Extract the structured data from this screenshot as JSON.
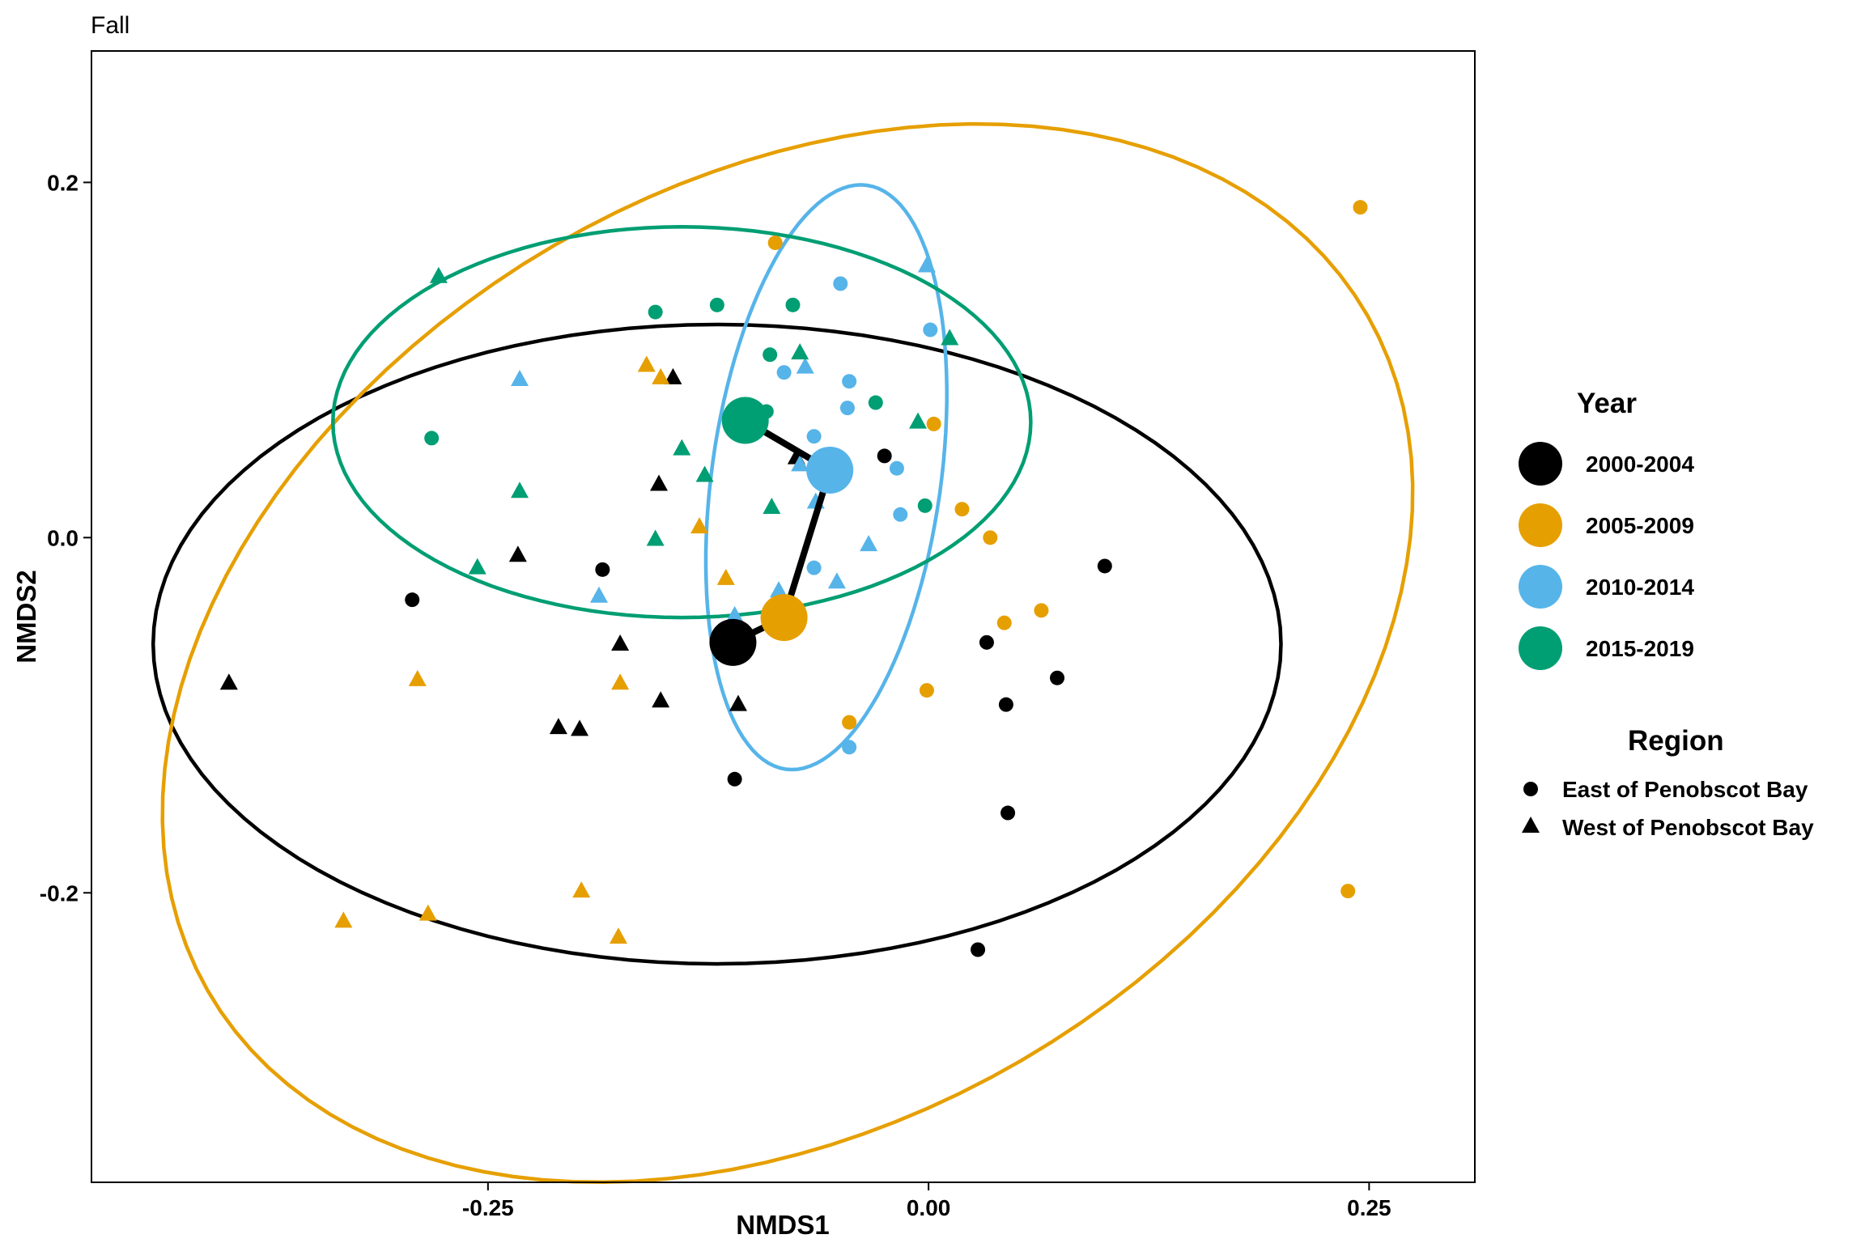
{
  "chart_data": {
    "type": "scatter",
    "title": "Fall",
    "xlabel": "NMDS1",
    "ylabel": "NMDS2",
    "xlim": [
      -0.475,
      0.31
    ],
    "ylim": [
      -0.363,
      0.274
    ],
    "x_ticks": [
      -0.25,
      0.0,
      0.25
    ],
    "x_tick_labels": [
      "-0.25",
      "0.00",
      "0.25"
    ],
    "y_ticks": [
      -0.2,
      0.0,
      0.2
    ],
    "y_tick_labels": [
      "-0.2",
      "0.0",
      "0.2"
    ],
    "grid": false,
    "legend_position": "right",
    "legends": {
      "year": {
        "title": "Year",
        "entries": [
          {
            "label": "2000-2004",
            "color": "#000000"
          },
          {
            "label": "2005-2009",
            "color": "#E69F00"
          },
          {
            "label": "2010-2014",
            "color": "#56B4E9"
          },
          {
            "label": "2015-2019",
            "color": "#009E73"
          }
        ]
      },
      "region": {
        "title": "Region",
        "entries": [
          {
            "label": "East of Penobscot Bay",
            "shape": "circle"
          },
          {
            "label": "West of Penobscot Bay",
            "shape": "triangle"
          }
        ]
      }
    },
    "series": [
      {
        "name": "2000-2004",
        "color": "#000000",
        "points": [
          {
            "x": -0.293,
            "y": -0.035,
            "shape": "circle"
          },
          {
            "x": -0.185,
            "y": -0.018,
            "shape": "circle"
          },
          {
            "x": -0.11,
            "y": -0.136,
            "shape": "circle"
          },
          {
            "x": 0.033,
            "y": -0.059,
            "shape": "circle"
          },
          {
            "x": 0.073,
            "y": -0.079,
            "shape": "circle"
          },
          {
            "x": 0.1,
            "y": -0.016,
            "shape": "circle"
          },
          {
            "x": 0.044,
            "y": -0.094,
            "shape": "circle"
          },
          {
            "x": 0.045,
            "y": -0.155,
            "shape": "circle"
          },
          {
            "x": 0.028,
            "y": -0.232,
            "shape": "circle"
          },
          {
            "x": -0.025,
            "y": 0.046,
            "shape": "circle"
          },
          {
            "x": -0.397,
            "y": -0.082,
            "shape": "triangle"
          },
          {
            "x": -0.233,
            "y": -0.01,
            "shape": "triangle"
          },
          {
            "x": -0.21,
            "y": -0.107,
            "shape": "triangle"
          },
          {
            "x": -0.198,
            "y": -0.108,
            "shape": "triangle"
          },
          {
            "x": -0.175,
            "y": -0.06,
            "shape": "triangle"
          },
          {
            "x": -0.152,
            "y": -0.092,
            "shape": "triangle"
          },
          {
            "x": -0.153,
            "y": 0.03,
            "shape": "triangle"
          },
          {
            "x": -0.145,
            "y": 0.09,
            "shape": "triangle"
          },
          {
            "x": -0.108,
            "y": -0.094,
            "shape": "triangle"
          },
          {
            "x": -0.075,
            "y": 0.045,
            "shape": "triangle"
          }
        ]
      },
      {
        "name": "2005-2009",
        "color": "#E69F00",
        "points": [
          {
            "x": -0.087,
            "y": 0.166,
            "shape": "circle"
          },
          {
            "x": 0.003,
            "y": 0.064,
            "shape": "circle"
          },
          {
            "x": 0.019,
            "y": 0.016,
            "shape": "circle"
          },
          {
            "x": 0.035,
            "y": 0.0,
            "shape": "circle"
          },
          {
            "x": 0.043,
            "y": -0.048,
            "shape": "circle"
          },
          {
            "x": 0.064,
            "y": -0.041,
            "shape": "circle"
          },
          {
            "x": -0.001,
            "y": -0.086,
            "shape": "circle"
          },
          {
            "x": -0.045,
            "y": -0.104,
            "shape": "circle"
          },
          {
            "x": 0.245,
            "y": 0.186,
            "shape": "circle"
          },
          {
            "x": 0.238,
            "y": -0.199,
            "shape": "circle"
          },
          {
            "x": -0.16,
            "y": 0.097,
            "shape": "triangle"
          },
          {
            "x": -0.152,
            "y": 0.09,
            "shape": "triangle"
          },
          {
            "x": -0.13,
            "y": 0.006,
            "shape": "triangle"
          },
          {
            "x": -0.115,
            "y": -0.023,
            "shape": "triangle"
          },
          {
            "x": -0.29,
            "y": -0.08,
            "shape": "triangle"
          },
          {
            "x": -0.175,
            "y": -0.082,
            "shape": "triangle"
          },
          {
            "x": -0.197,
            "y": -0.199,
            "shape": "triangle"
          },
          {
            "x": -0.176,
            "y": -0.225,
            "shape": "triangle"
          },
          {
            "x": -0.284,
            "y": -0.212,
            "shape": "triangle"
          },
          {
            "x": -0.332,
            "y": -0.216,
            "shape": "triangle"
          }
        ]
      },
      {
        "name": "2010-2014",
        "color": "#56B4E9",
        "points": [
          {
            "x": -0.05,
            "y": 0.143,
            "shape": "circle"
          },
          {
            "x": 0.001,
            "y": 0.117,
            "shape": "circle"
          },
          {
            "x": -0.082,
            "y": 0.093,
            "shape": "circle"
          },
          {
            "x": -0.045,
            "y": 0.088,
            "shape": "circle"
          },
          {
            "x": -0.046,
            "y": 0.073,
            "shape": "circle"
          },
          {
            "x": -0.065,
            "y": 0.057,
            "shape": "circle"
          },
          {
            "x": -0.018,
            "y": 0.039,
            "shape": "circle"
          },
          {
            "x": -0.016,
            "y": 0.013,
            "shape": "circle"
          },
          {
            "x": -0.065,
            "y": -0.017,
            "shape": "circle"
          },
          {
            "x": -0.045,
            "y": -0.118,
            "shape": "circle"
          },
          {
            "x": -0.001,
            "y": 0.153,
            "shape": "triangle"
          },
          {
            "x": -0.07,
            "y": 0.096,
            "shape": "triangle"
          },
          {
            "x": -0.232,
            "y": 0.089,
            "shape": "triangle"
          },
          {
            "x": -0.073,
            "y": 0.041,
            "shape": "triangle"
          },
          {
            "x": -0.064,
            "y": 0.02,
            "shape": "triangle"
          },
          {
            "x": -0.034,
            "y": -0.004,
            "shape": "triangle"
          },
          {
            "x": -0.052,
            "y": -0.025,
            "shape": "triangle"
          },
          {
            "x": -0.187,
            "y": -0.033,
            "shape": "triangle"
          },
          {
            "x": -0.085,
            "y": -0.03,
            "shape": "triangle"
          },
          {
            "x": -0.11,
            "y": -0.044,
            "shape": "triangle"
          }
        ]
      },
      {
        "name": "2015-2019",
        "color": "#009E73",
        "points": [
          {
            "x": -0.155,
            "y": 0.127,
            "shape": "circle"
          },
          {
            "x": -0.12,
            "y": 0.131,
            "shape": "circle"
          },
          {
            "x": -0.077,
            "y": 0.131,
            "shape": "circle"
          },
          {
            "x": -0.09,
            "y": 0.103,
            "shape": "circle"
          },
          {
            "x": -0.03,
            "y": 0.076,
            "shape": "circle"
          },
          {
            "x": -0.092,
            "y": 0.071,
            "shape": "circle"
          },
          {
            "x": -0.282,
            "y": 0.056,
            "shape": "circle"
          },
          {
            "x": -0.002,
            "y": 0.018,
            "shape": "circle"
          },
          {
            "x": -0.278,
            "y": 0.147,
            "shape": "triangle"
          },
          {
            "x": -0.073,
            "y": 0.104,
            "shape": "triangle"
          },
          {
            "x": 0.012,
            "y": 0.112,
            "shape": "triangle"
          },
          {
            "x": -0.006,
            "y": 0.065,
            "shape": "triangle"
          },
          {
            "x": -0.14,
            "y": 0.05,
            "shape": "triangle"
          },
          {
            "x": -0.127,
            "y": 0.035,
            "shape": "triangle"
          },
          {
            "x": -0.232,
            "y": 0.026,
            "shape": "triangle"
          },
          {
            "x": -0.089,
            "y": 0.017,
            "shape": "triangle"
          },
          {
            "x": -0.155,
            "y": -0.001,
            "shape": "triangle"
          },
          {
            "x": -0.256,
            "y": -0.017,
            "shape": "triangle"
          }
        ]
      }
    ],
    "centroids": [
      {
        "name": "2000-2004",
        "x": -0.111,
        "y": -0.059,
        "color": "#000000"
      },
      {
        "name": "2005-2009",
        "x": -0.082,
        "y": -0.045,
        "color": "#E69F00"
      },
      {
        "name": "2010-2014",
        "x": -0.056,
        "y": 0.038,
        "color": "#56B4E9"
      },
      {
        "name": "2015-2019",
        "x": -0.104,
        "y": 0.066,
        "color": "#009E73"
      }
    ],
    "centroid_path": [
      {
        "x": -0.111,
        "y": -0.059
      },
      {
        "x": -0.082,
        "y": -0.045
      },
      {
        "x": -0.056,
        "y": 0.038
      },
      {
        "x": -0.104,
        "y": 0.066
      }
    ],
    "ellipses": [
      {
        "name": "2000-2004",
        "color": "#000000",
        "cx": -0.12,
        "cy": -0.06,
        "rx": 0.32,
        "ry": 0.18,
        "angle": 0
      },
      {
        "name": "2005-2009",
        "color": "#E69F00",
        "cx": -0.08,
        "cy": -0.065,
        "rx": 0.38,
        "ry": 0.265,
        "angle": 30
      },
      {
        "name": "2010-2014",
        "color": "#56B4E9",
        "cx": -0.058,
        "cy": 0.034,
        "rx": 0.166,
        "ry": 0.065,
        "angle": 82
      },
      {
        "name": "2015-2019",
        "color": "#009E73",
        "cx": -0.14,
        "cy": 0.065,
        "rx": 0.198,
        "ry": 0.11,
        "angle": 0
      }
    ]
  }
}
